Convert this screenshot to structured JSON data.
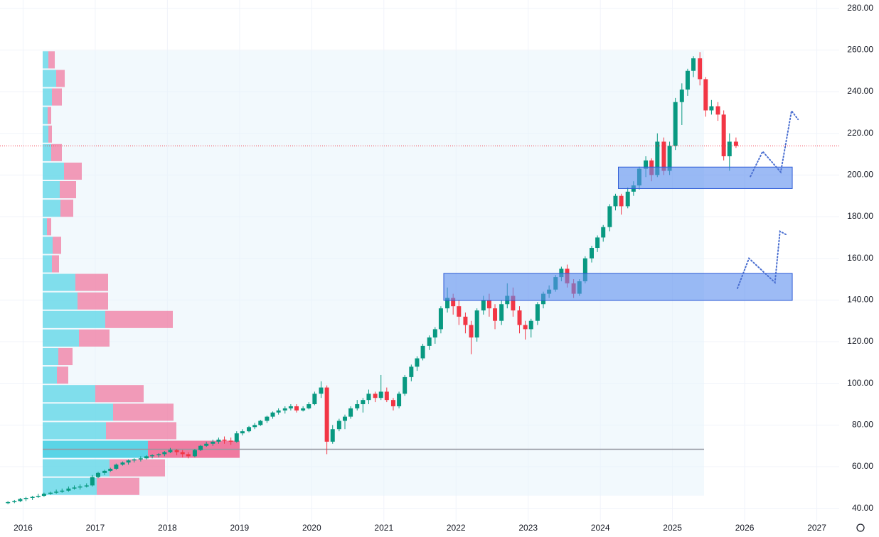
{
  "chart_data": {
    "type": "candlestick",
    "xlim": [
      2015.68,
      2027.31
    ],
    "ylim": [
      30,
      284
    ],
    "xticks": [
      2016,
      2017,
      2018,
      2019,
      2020,
      2021,
      2022,
      2023,
      2024,
      2025,
      2026,
      2027
    ],
    "yticks": [
      {
        "value": 40,
        "label": "40.00"
      },
      {
        "value": 60,
        "label": "60.00"
      },
      {
        "value": 80,
        "label": "80.00"
      },
      {
        "value": 100,
        "label": "100.00"
      },
      {
        "value": 120,
        "label": "120.00"
      },
      {
        "value": 140,
        "label": "140.00"
      },
      {
        "value": 160,
        "label": "160.00"
      },
      {
        "value": 180,
        "label": "180.00"
      },
      {
        "value": 200,
        "label": "200.00"
      },
      {
        "value": 220,
        "label": "220.00"
      },
      {
        "value": 240,
        "label": "240.00"
      },
      {
        "value": 260,
        "label": "260.00"
      },
      {
        "value": 280,
        "label": "280.00"
      }
    ],
    "grid": true,
    "up_color": "#089981",
    "down_color": "#f23645",
    "candles": [
      [
        2015.79,
        42.5,
        43.5,
        42,
        43
      ],
      [
        2015.88,
        43,
        44,
        42.5,
        43.5
      ],
      [
        2015.96,
        43.5,
        45,
        43,
        44.5
      ],
      [
        2016.04,
        44.5,
        45.5,
        43.5,
        45
      ],
      [
        2016.13,
        45,
        46,
        44,
        45.5
      ],
      [
        2016.21,
        45.5,
        47,
        45,
        46
      ],
      [
        2016.29,
        46,
        47.5,
        45.5,
        47
      ],
      [
        2016.38,
        47,
        48,
        46.5,
        47.5
      ],
      [
        2016.46,
        47.5,
        49,
        47,
        48
      ],
      [
        2016.54,
        48,
        49.5,
        47.5,
        48.5
      ],
      [
        2016.63,
        48.5,
        50.5,
        48,
        49.5
      ],
      [
        2016.71,
        49.5,
        51,
        49,
        50
      ],
      [
        2016.79,
        50,
        51.5,
        49,
        50.5
      ],
      [
        2016.88,
        50.5,
        52,
        50,
        51
      ],
      [
        2016.96,
        51,
        56,
        50.5,
        55
      ],
      [
        2017.04,
        55,
        57.5,
        54.5,
        57
      ],
      [
        2017.13,
        57,
        58.5,
        56,
        58
      ],
      [
        2017.21,
        58,
        59.5,
        57.5,
        59
      ],
      [
        2017.29,
        59,
        61.5,
        58.5,
        61
      ],
      [
        2017.38,
        61,
        62.5,
        60.5,
        62
      ],
      [
        2017.46,
        62,
        63.5,
        61,
        63
      ],
      [
        2017.54,
        63,
        64,
        62,
        63.5
      ],
      [
        2017.63,
        63.5,
        65,
        62.5,
        64
      ],
      [
        2017.71,
        64,
        65.5,
        63.5,
        65
      ],
      [
        2017.79,
        65,
        66,
        64,
        65.5
      ],
      [
        2017.88,
        65.5,
        66.5,
        64.5,
        66
      ],
      [
        2017.96,
        66,
        67.5,
        65,
        67
      ],
      [
        2018.04,
        67,
        69,
        66.5,
        68
      ],
      [
        2018.13,
        68,
        68.5,
        65.5,
        67
      ],
      [
        2018.21,
        67,
        68,
        64.5,
        66
      ],
      [
        2018.29,
        66,
        67,
        64,
        65
      ],
      [
        2018.38,
        65,
        68.5,
        64.5,
        68
      ],
      [
        2018.46,
        68,
        70.5,
        67.5,
        70
      ],
      [
        2018.54,
        70,
        72,
        69.5,
        71
      ],
      [
        2018.63,
        71,
        73,
        70,
        72
      ],
      [
        2018.71,
        72,
        74,
        71,
        73
      ],
      [
        2018.79,
        73,
        74.5,
        71,
        72.5
      ],
      [
        2018.88,
        72.5,
        74,
        70.5,
        72
      ],
      [
        2018.96,
        72,
        77,
        71.5,
        76
      ],
      [
        2019.04,
        76,
        78,
        75,
        77
      ],
      [
        2019.13,
        77,
        79.5,
        76.5,
        79
      ],
      [
        2019.21,
        79,
        81,
        78,
        80
      ],
      [
        2019.29,
        80,
        82.5,
        79.5,
        82
      ],
      [
        2019.38,
        82,
        84.5,
        81,
        84
      ],
      [
        2019.46,
        84,
        86.5,
        83,
        86
      ],
      [
        2019.54,
        86,
        88,
        85,
        87
      ],
      [
        2019.63,
        87,
        89,
        85.5,
        88
      ],
      [
        2019.71,
        88,
        90,
        87,
        89
      ],
      [
        2019.79,
        89,
        90,
        86,
        87
      ],
      [
        2019.88,
        87,
        89,
        86.5,
        88
      ],
      [
        2019.96,
        88,
        91,
        87.5,
        90
      ],
      [
        2020.04,
        90,
        96,
        89.5,
        95
      ],
      [
        2020.13,
        95,
        101,
        93,
        98
      ],
      [
        2020.21,
        98,
        99,
        66,
        72
      ],
      [
        2020.29,
        72,
        80,
        71,
        78
      ],
      [
        2020.38,
        78,
        83,
        77,
        82
      ],
      [
        2020.46,
        82,
        85,
        78,
        84
      ],
      [
        2020.54,
        84,
        89,
        83,
        88
      ],
      [
        2020.63,
        88,
        92,
        87,
        90
      ],
      [
        2020.71,
        90,
        93,
        86,
        92
      ],
      [
        2020.79,
        92,
        97,
        90,
        95
      ],
      [
        2020.88,
        95,
        96,
        91,
        93
      ],
      [
        2020.96,
        93,
        104,
        92,
        96
      ],
      [
        2021.04,
        96,
        98,
        91,
        92
      ],
      [
        2021.13,
        92,
        93,
        87,
        89
      ],
      [
        2021.21,
        89,
        96,
        88,
        95
      ],
      [
        2021.29,
        95,
        104,
        94,
        103
      ],
      [
        2021.38,
        103,
        109,
        101,
        108
      ],
      [
        2021.46,
        108,
        113,
        106,
        112
      ],
      [
        2021.54,
        112,
        119,
        111,
        118
      ],
      [
        2021.63,
        118,
        123,
        116,
        122
      ],
      [
        2021.71,
        122,
        127,
        119,
        126
      ],
      [
        2021.79,
        126,
        137,
        124,
        136
      ],
      [
        2021.88,
        136,
        146,
        134,
        141
      ],
      [
        2021.96,
        141,
        143,
        133,
        137
      ],
      [
        2022.04,
        137,
        140,
        128,
        132
      ],
      [
        2022.13,
        132,
        134,
        124,
        128
      ],
      [
        2022.21,
        128,
        130,
        114,
        122
      ],
      [
        2022.29,
        122,
        136,
        120,
        135
      ],
      [
        2022.38,
        135,
        142,
        133,
        140
      ],
      [
        2022.46,
        140,
        143,
        132,
        136
      ],
      [
        2022.54,
        136,
        138,
        126,
        130
      ],
      [
        2022.63,
        130,
        140,
        128,
        138
      ],
      [
        2022.71,
        138,
        148,
        136,
        142
      ],
      [
        2022.79,
        142,
        146,
        132,
        135
      ],
      [
        2022.88,
        135,
        137,
        124,
        128
      ],
      [
        2022.96,
        128,
        130,
        121,
        126
      ],
      [
        2023.04,
        126,
        131,
        122,
        130
      ],
      [
        2023.13,
        130,
        139,
        128,
        138
      ],
      [
        2023.21,
        138,
        144,
        136,
        143
      ],
      [
        2023.29,
        143,
        147,
        141,
        145
      ],
      [
        2023.38,
        145,
        152,
        144,
        151
      ],
      [
        2023.46,
        151,
        156,
        149,
        155
      ],
      [
        2023.54,
        155,
        157,
        146,
        148
      ],
      [
        2023.63,
        148,
        150,
        141,
        143
      ],
      [
        2023.71,
        143,
        150,
        142,
        149
      ],
      [
        2023.79,
        149,
        161,
        148,
        160
      ],
      [
        2023.88,
        160,
        166,
        158,
        165
      ],
      [
        2023.96,
        165,
        171,
        163,
        170
      ],
      [
        2024.04,
        170,
        176,
        168,
        175
      ],
      [
        2024.13,
        175,
        186,
        173,
        185
      ],
      [
        2024.21,
        185,
        191,
        183,
        190
      ],
      [
        2024.29,
        190,
        191,
        181,
        185
      ],
      [
        2024.38,
        185,
        194,
        184,
        192
      ],
      [
        2024.46,
        192,
        197,
        190,
        195
      ],
      [
        2024.54,
        195,
        204,
        193,
        203
      ],
      [
        2024.63,
        203,
        209,
        199,
        207
      ],
      [
        2024.71,
        207,
        208,
        197,
        200
      ],
      [
        2024.79,
        200,
        220,
        199,
        216
      ],
      [
        2024.88,
        216,
        218,
        200,
        202
      ],
      [
        2024.96,
        202,
        216,
        200,
        214
      ],
      [
        2025.04,
        214,
        237,
        212,
        235
      ],
      [
        2025.13,
        235,
        244,
        224,
        241
      ],
      [
        2025.21,
        241,
        251,
        238,
        250
      ],
      [
        2025.29,
        250,
        257,
        247,
        256
      ],
      [
        2025.38,
        256,
        259,
        243,
        246
      ],
      [
        2025.46,
        246,
        247,
        228,
        231
      ],
      [
        2025.54,
        231,
        236,
        229,
        233
      ],
      [
        2025.63,
        233,
        235,
        226,
        229
      ],
      [
        2025.71,
        229,
        231,
        207,
        209
      ],
      [
        2025.79,
        209,
        220,
        202,
        216
      ],
      [
        2025.88,
        216,
        218,
        213,
        214
      ]
    ],
    "volume_profile": {
      "bin_edges": [
        46.1,
        55.0,
        63.9,
        72.8,
        81.7,
        90.6,
        99.5,
        108.4,
        117.3,
        126.2,
        135.1,
        144.0,
        152.9,
        161.8,
        170.7,
        179.6,
        188.5,
        197.4,
        206.3,
        215.2,
        224.1,
        233.0,
        241.9,
        250.8,
        259.7
      ],
      "up": [
        76,
        94,
        148,
        89,
        99,
        74,
        20,
        22,
        51,
        88,
        49,
        46,
        13,
        14,
        6,
        25,
        24,
        30,
        12,
        8,
        7,
        13,
        19,
        8
      ],
      "down": [
        60,
        78,
        129,
        99,
        85,
        68,
        16,
        20,
        43,
        95,
        43,
        46,
        10,
        12,
        6,
        18,
        23,
        25,
        15,
        5,
        5,
        14,
        12,
        9
      ],
      "up_color": "#5ad4e6",
      "down_color": "#f07aa0",
      "poc_color": "#9598a1"
    },
    "zones": [
      {
        "x0": 2021.83,
        "x1": 2026.66,
        "y0": 139.8,
        "y1": 152.8
      },
      {
        "x0": 2024.25,
        "x1": 2026.66,
        "y0": 193.5,
        "y1": 203.8
      }
    ],
    "zone_color": "#5b8def",
    "projections": [
      {
        "x": [
          2026.08,
          2026.25,
          2026.5,
          2026.65,
          2026.74
        ],
        "y": [
          199.3,
          211.3,
          201.4,
          230.8,
          226.7
        ]
      },
      {
        "x": [
          2025.9,
          2026.06,
          2026.42,
          2026.49,
          2026.58
        ],
        "y": [
          145.6,
          160.0,
          148.4,
          173.0,
          171.3
        ]
      }
    ],
    "projection_color": "#4a6fd1"
  }
}
